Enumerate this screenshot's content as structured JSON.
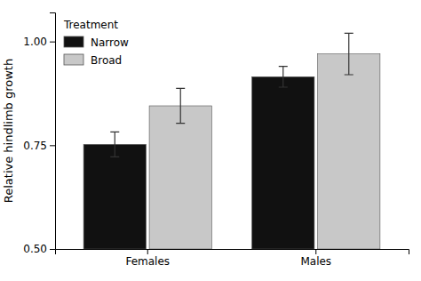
{
  "chart_data": {
    "type": "bar",
    "categories": [
      "Females",
      "Males"
    ],
    "series": [
      {
        "name": "Narrow",
        "color": "#111111",
        "values": [
          0.752,
          0.915
        ],
        "errors": [
          0.03,
          0.025
        ]
      },
      {
        "name": "Broad",
        "color": "#c8c8c8",
        "values": [
          0.845,
          0.97
        ],
        "errors": [
          0.042,
          0.05
        ]
      }
    ],
    "ylabel": "Relative hindlimb growth",
    "ylim": [
      0.5,
      1.07
    ],
    "yticks": [
      {
        "value": 0.5,
        "label": "0.50"
      },
      {
        "value": 0.75,
        "label": "0.75"
      },
      {
        "value": 1.0,
        "label": "1.00"
      }
    ],
    "legend_title": "Treatment",
    "legend": "upper left",
    "grid": false
  }
}
